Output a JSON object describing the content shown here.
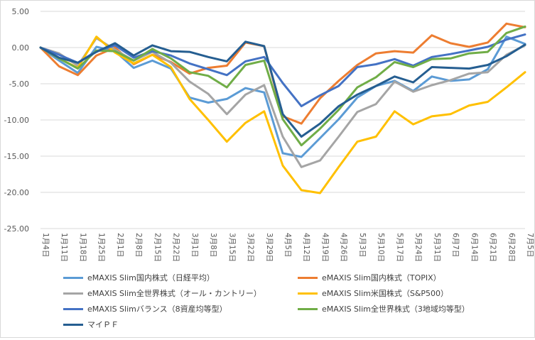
{
  "chart_data": {
    "type": "line",
    "title": "",
    "xlabel": "",
    "ylabel": "",
    "ylim": [
      -25,
      5
    ],
    "yticks": [
      "5.00",
      "0.00",
      "-5.00",
      "-10.00",
      "-15.00",
      "-20.00",
      "-25.00"
    ],
    "ytick_values": [
      5,
      0,
      -5,
      -10,
      -15,
      -20,
      -25
    ],
    "grid": true,
    "legend_position": "bottom",
    "categories": [
      "1月4日",
      "1月11日",
      "1月18日",
      "1月25日",
      "2月1日",
      "2月8日",
      "2月15日",
      "2月22日",
      "3月1日",
      "3月8日",
      "3月15日",
      "3月22日",
      "3月29日",
      "4月5日",
      "4月12日",
      "4月19日",
      "4月26日",
      "5月3日",
      "5月10日",
      "5月17日",
      "5月24日",
      "5月31日",
      "6月7日",
      "6月14日",
      "6月21日",
      "6月28日",
      "7月5日"
    ],
    "series": [
      {
        "name": "eMAXIS Slim国内株式（日経平均）",
        "color": "#5b9bd5",
        "values": [
          0,
          -1.8,
          -3.5,
          0.1,
          -0.5,
          -2.8,
          -1.8,
          -2.9,
          -6.9,
          -7.6,
          -7.1,
          -5.6,
          -6.2,
          -14.6,
          -15.1,
          -12.5,
          -9.9,
          -6.9,
          -5.3,
          -4.6,
          -6.0,
          -4.0,
          -4.6,
          -4.4,
          -3.0,
          1.5,
          0.5
        ]
      },
      {
        "name": "eMAXIS Slim国内株式（TOPIX）",
        "color": "#ed7d31",
        "values": [
          0,
          -2.6,
          -3.8,
          -1.1,
          0.0,
          -2.3,
          -1.0,
          -2.0,
          -3.6,
          -2.8,
          -2.5,
          0.7,
          0.2,
          -9.5,
          -10.5,
          -7.0,
          -4.6,
          -2.4,
          -0.8,
          -0.5,
          -0.7,
          1.7,
          0.6,
          0.1,
          0.7,
          3.3,
          2.8
        ]
      },
      {
        "name": "eMAXIS Slim全世界株式（オール・カントリー）",
        "color": "#a5a5a5",
        "values": [
          0,
          -0.8,
          -2.5,
          1.3,
          -0.3,
          -1.8,
          -0.6,
          -2.1,
          -4.7,
          -6.4,
          -9.2,
          -6.5,
          -5.2,
          -12.3,
          -16.5,
          -15.6,
          -12.3,
          -8.9,
          -7.8,
          -4.7,
          -6.1,
          -5.2,
          -4.5,
          -3.6,
          -3.4,
          -1.0,
          0.3
        ]
      },
      {
        "name": "eMAXIS Slim米国株式（S&P500）",
        "color": "#ffc000",
        "values": [
          0,
          -1.5,
          -2.8,
          1.5,
          -0.7,
          -2.2,
          -1.0,
          -2.7,
          -7.1,
          -10.0,
          -13.0,
          -10.4,
          -8.8,
          -16.3,
          -19.7,
          -20.1,
          -16.5,
          -13.0,
          -12.3,
          -8.8,
          -10.6,
          -9.5,
          -9.2,
          -8.0,
          -7.5,
          -5.5,
          -3.4
        ]
      },
      {
        "name": "eMAXIS Slimバランス（8資産均等型）",
        "color": "#4472c4",
        "values": [
          0,
          -1.0,
          -2.1,
          -0.5,
          0.3,
          -1.4,
          -0.5,
          -1.1,
          -2.2,
          -3.0,
          -3.8,
          -1.9,
          -1.3,
          -4.9,
          -8.1,
          -6.6,
          -5.3,
          -2.7,
          -2.3,
          -1.6,
          -2.5,
          -1.3,
          -0.9,
          -0.4,
          0.1,
          1.1,
          1.8
        ]
      },
      {
        "name": "eMAXIS Slim全世界株式（3地域均等型）",
        "color": "#70ad47",
        "values": [
          0,
          -1.5,
          -2.9,
          -0.4,
          -0.5,
          -1.8,
          -0.2,
          -1.5,
          -3.4,
          -3.9,
          -5.5,
          -2.4,
          -1.8,
          -9.9,
          -13.5,
          -11.2,
          -8.6,
          -5.5,
          -4.1,
          -2.0,
          -2.7,
          -1.6,
          -1.5,
          -0.8,
          -0.6,
          2.0,
          2.9
        ]
      },
      {
        "name": "マイＰＦ",
        "color": "#255e91",
        "values": [
          0,
          -1.4,
          -2.1,
          -0.6,
          0.6,
          -1.1,
          0.3,
          -0.5,
          -0.6,
          -1.3,
          -1.9,
          0.8,
          0.2,
          -9.2,
          -12.3,
          -10.5,
          -8.1,
          -6.5,
          -5.3,
          -4.0,
          -4.8,
          -2.7,
          -2.8,
          -2.9,
          -2.4,
          -1.2,
          0.4
        ]
      }
    ]
  }
}
